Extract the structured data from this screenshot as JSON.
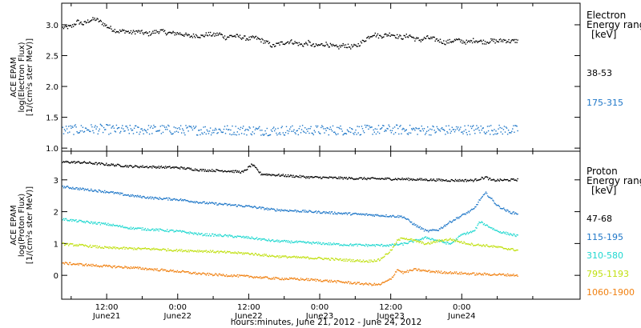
{
  "page": {
    "footer_label": "hours:minutes, June 21, 2012 - June 24, 2012"
  },
  "chart_data": [
    {
      "type": "scatter",
      "panel": "electron",
      "ylabel": [
        "ACE EPAM",
        "log(Electron Flux)",
        "[1/(cm²s ster MeV)]"
      ],
      "ylim": [
        0.95,
        3.35
      ],
      "yticks": [
        1.0,
        1.5,
        2.0,
        2.5,
        3.0
      ],
      "ytick_labels": [
        "1.0",
        "1.5",
        "2.0",
        "2.5",
        "3.0"
      ],
      "xlim": [
        4.4,
        92.0
      ],
      "x_unit": "hours since 2012-06-21 00:00",
      "xticks": [
        12,
        24,
        36,
        48,
        60,
        72
      ],
      "xtick_labels": [
        "12:00",
        "0:00",
        "12:00",
        "0:00",
        "12:00",
        "0:00"
      ],
      "xtick_sublabels": [
        "June21",
        "June22",
        "June22",
        "June23",
        "June23",
        "June24"
      ],
      "minor_xticks": [
        6,
        18,
        30,
        42,
        54,
        66,
        78,
        84
      ],
      "grid": false,
      "legend_position": "right",
      "legend_title": [
        "Electron",
        "Energy ranges",
        "[keV]"
      ],
      "series": [
        {
          "name": "38-53",
          "color": "#000000",
          "points": [
            [
              4.5,
              2.96
            ],
            [
              6,
              2.98
            ],
            [
              7,
              3.06
            ],
            [
              8,
              3.02
            ],
            [
              9,
              3.08
            ],
            [
              10,
              3.1
            ],
            [
              11,
              3.05
            ],
            [
              12,
              2.98
            ],
            [
              13,
              2.93
            ],
            [
              14,
              2.9
            ],
            [
              15,
              2.91
            ],
            [
              16,
              2.88
            ],
            [
              17,
              2.9
            ],
            [
              18,
              2.88
            ],
            [
              19,
              2.86
            ],
            [
              20,
              2.89
            ],
            [
              21,
              2.91
            ],
            [
              22,
              2.88
            ],
            [
              23,
              2.87
            ],
            [
              24,
              2.87
            ],
            [
              25,
              2.85
            ],
            [
              26,
              2.82
            ],
            [
              27,
              2.84
            ],
            [
              28,
              2.82
            ],
            [
              29,
              2.86
            ],
            [
              30,
              2.84
            ],
            [
              31,
              2.86
            ],
            [
              32,
              2.8
            ],
            [
              33,
              2.83
            ],
            [
              34,
              2.82
            ],
            [
              35,
              2.8
            ],
            [
              36,
              2.78
            ],
            [
              37,
              2.8
            ],
            [
              38,
              2.76
            ],
            [
              39,
              2.72
            ],
            [
              40,
              2.66
            ],
            [
              41,
              2.7
            ],
            [
              42,
              2.72
            ],
            [
              43,
              2.74
            ],
            [
              44,
              2.71
            ],
            [
              45,
              2.68
            ],
            [
              46,
              2.72
            ],
            [
              47,
              2.66
            ],
            [
              48,
              2.68
            ],
            [
              49,
              2.7
            ],
            [
              50,
              2.66
            ],
            [
              51,
              2.64
            ],
            [
              52,
              2.68
            ],
            [
              53,
              2.65
            ],
            [
              54,
              2.66
            ],
            [
              55,
              2.72
            ],
            [
              56,
              2.8
            ],
            [
              57,
              2.86
            ],
            [
              58,
              2.82
            ],
            [
              59,
              2.84
            ],
            [
              60,
              2.86
            ],
            [
              61,
              2.82
            ],
            [
              62,
              2.8
            ],
            [
              63,
              2.84
            ],
            [
              64,
              2.78
            ],
            [
              65,
              2.76
            ],
            [
              66,
              2.8
            ],
            [
              67,
              2.78
            ],
            [
              68,
              2.76
            ],
            [
              69,
              2.72
            ],
            [
              70,
              2.74
            ],
            [
              71,
              2.76
            ],
            [
              72,
              2.74
            ],
            [
              73,
              2.72
            ],
            [
              74,
              2.76
            ],
            [
              75,
              2.74
            ],
            [
              76,
              2.73
            ],
            [
              77,
              2.75
            ],
            [
              78,
              2.74
            ],
            [
              79,
              2.76
            ],
            [
              80,
              2.74
            ],
            [
              81.5,
              2.75
            ]
          ]
        },
        {
          "name": "175-315",
          "color": "#1f77c8",
          "points": [
            [
              4.5,
              1.3
            ],
            [
              10,
              1.32
            ],
            [
              15,
              1.3
            ],
            [
              20,
              1.31
            ],
            [
              25,
              1.3
            ],
            [
              30,
              1.3
            ],
            [
              35,
              1.3
            ],
            [
              40,
              1.29
            ],
            [
              45,
              1.3
            ],
            [
              50,
              1.3
            ],
            [
              55,
              1.3
            ],
            [
              60,
              1.31
            ],
            [
              65,
              1.3
            ],
            [
              70,
              1.3
            ],
            [
              75,
              1.31
            ],
            [
              81.5,
              1.3
            ]
          ]
        }
      ]
    },
    {
      "type": "scatter",
      "panel": "proton",
      "ylabel": [
        "ACE EPAM",
        "log(Proton Flux)",
        "[1/(cm²s ster MeV)]"
      ],
      "ylim": [
        -0.75,
        3.9
      ],
      "yticks": [
        0,
        1,
        2,
        3
      ],
      "ytick_labels": [
        "0",
        "1",
        "2",
        "3"
      ],
      "xlim": [
        4.4,
        92.0
      ],
      "x_unit": "hours since 2012-06-21 00:00",
      "xticks": [
        12,
        24,
        36,
        48,
        60,
        72
      ],
      "xtick_labels": [
        "12:00",
        "0:00",
        "12:00",
        "0:00",
        "12:00",
        "0:00"
      ],
      "xtick_sublabels": [
        "June21",
        "June22",
        "June22",
        "June23",
        "June23",
        "June24"
      ],
      "minor_xticks": [
        6,
        18,
        30,
        42,
        54,
        66,
        78,
        84
      ],
      "grid": false,
      "legend_position": "right",
      "legend_title": [
        "Proton",
        "Energy ranges",
        "[keV]"
      ],
      "series": [
        {
          "name": "47-68",
          "color": "#000000",
          "points": [
            [
              4.5,
              3.58
            ],
            [
              8,
              3.56
            ],
            [
              12,
              3.5
            ],
            [
              16,
              3.44
            ],
            [
              20,
              3.42
            ],
            [
              24,
              3.4
            ],
            [
              28,
              3.32
            ],
            [
              32,
              3.3
            ],
            [
              35,
              3.26
            ],
            [
              36.5,
              3.5
            ],
            [
              38,
              3.2
            ],
            [
              42,
              3.15
            ],
            [
              46,
              3.1
            ],
            [
              50,
              3.08
            ],
            [
              54,
              3.06
            ],
            [
              58,
              3.05
            ],
            [
              62,
              3.04
            ],
            [
              66,
              3.02
            ],
            [
              70,
              3.0
            ],
            [
              74,
              3.0
            ],
            [
              76,
              3.1
            ],
            [
              77,
              3.0
            ],
            [
              81.5,
              3.02
            ]
          ]
        },
        {
          "name": "115-195",
          "color": "#1f77c8",
          "points": [
            [
              4.5,
              2.8
            ],
            [
              8,
              2.72
            ],
            [
              12,
              2.64
            ],
            [
              16,
              2.52
            ],
            [
              20,
              2.44
            ],
            [
              24,
              2.4
            ],
            [
              28,
              2.3
            ],
            [
              32,
              2.24
            ],
            [
              36,
              2.18
            ],
            [
              40,
              2.08
            ],
            [
              44,
              2.04
            ],
            [
              48,
              2.0
            ],
            [
              52,
              1.96
            ],
            [
              56,
              1.92
            ],
            [
              60,
              1.88
            ],
            [
              62,
              1.86
            ],
            [
              64,
              1.6
            ],
            [
              66,
              1.4
            ],
            [
              68,
              1.45
            ],
            [
              70,
              1.7
            ],
            [
              72,
              1.9
            ],
            [
              74,
              2.1
            ],
            [
              75,
              2.4
            ],
            [
              76,
              2.6
            ],
            [
              77,
              2.4
            ],
            [
              78,
              2.2
            ],
            [
              80,
              2.0
            ],
            [
              81.5,
              1.95
            ]
          ]
        },
        {
          "name": "310-580",
          "color": "#20d8d0",
          "points": [
            [
              4.5,
              1.78
            ],
            [
              8,
              1.7
            ],
            [
              12,
              1.62
            ],
            [
              16,
              1.5
            ],
            [
              20,
              1.45
            ],
            [
              24,
              1.4
            ],
            [
              28,
              1.3
            ],
            [
              32,
              1.26
            ],
            [
              36,
              1.2
            ],
            [
              40,
              1.1
            ],
            [
              44,
              1.06
            ],
            [
              48,
              1.02
            ],
            [
              52,
              0.98
            ],
            [
              56,
              0.96
            ],
            [
              60,
              0.96
            ],
            [
              62,
              1.0
            ],
            [
              64,
              1.1
            ],
            [
              66,
              1.2
            ],
            [
              68,
              1.1
            ],
            [
              70,
              1.0
            ],
            [
              72,
              1.3
            ],
            [
              74,
              1.4
            ],
            [
              75,
              1.7
            ],
            [
              76,
              1.6
            ],
            [
              78,
              1.4
            ],
            [
              81.5,
              1.25
            ]
          ]
        },
        {
          "name": "795-1193",
          "color": "#c0e010",
          "points": [
            [
              4.5,
              1.0
            ],
            [
              8,
              0.95
            ],
            [
              12,
              0.88
            ],
            [
              16,
              0.86
            ],
            [
              20,
              0.84
            ],
            [
              24,
              0.8
            ],
            [
              28,
              0.78
            ],
            [
              32,
              0.74
            ],
            [
              36,
              0.7
            ],
            [
              40,
              0.62
            ],
            [
              44,
              0.58
            ],
            [
              48,
              0.55
            ],
            [
              52,
              0.5
            ],
            [
              56,
              0.46
            ],
            [
              58,
              0.5
            ],
            [
              60,
              0.8
            ],
            [
              61,
              1.1
            ],
            [
              62,
              1.2
            ],
            [
              64,
              1.1
            ],
            [
              66,
              1.0
            ],
            [
              68,
              1.1
            ],
            [
              70,
              1.15
            ],
            [
              72,
              1.05
            ],
            [
              74,
              0.98
            ],
            [
              76,
              0.95
            ],
            [
              78,
              0.9
            ],
            [
              81.5,
              0.8
            ]
          ]
        },
        {
          "name": "1060-1900",
          "color": "#f08010",
          "points": [
            [
              4.5,
              0.4
            ],
            [
              8,
              0.35
            ],
            [
              12,
              0.3
            ],
            [
              16,
              0.26
            ],
            [
              20,
              0.2
            ],
            [
              24,
              0.14
            ],
            [
              28,
              0.06
            ],
            [
              32,
              0.02
            ],
            [
              36,
              -0.02
            ],
            [
              40,
              -0.08
            ],
            [
              44,
              -0.1
            ],
            [
              48,
              -0.14
            ],
            [
              52,
              -0.2
            ],
            [
              56,
              -0.26
            ],
            [
              58,
              -0.28
            ],
            [
              60,
              -0.1
            ],
            [
              61,
              0.2
            ],
            [
              62,
              0.1
            ],
            [
              64,
              0.2
            ],
            [
              66,
              0.15
            ],
            [
              68,
              0.12
            ],
            [
              70,
              0.1
            ],
            [
              72,
              0.08
            ],
            [
              74,
              0.06
            ],
            [
              76,
              0.05
            ],
            [
              78,
              0.04
            ],
            [
              81.5,
              0.02
            ]
          ]
        }
      ]
    }
  ]
}
